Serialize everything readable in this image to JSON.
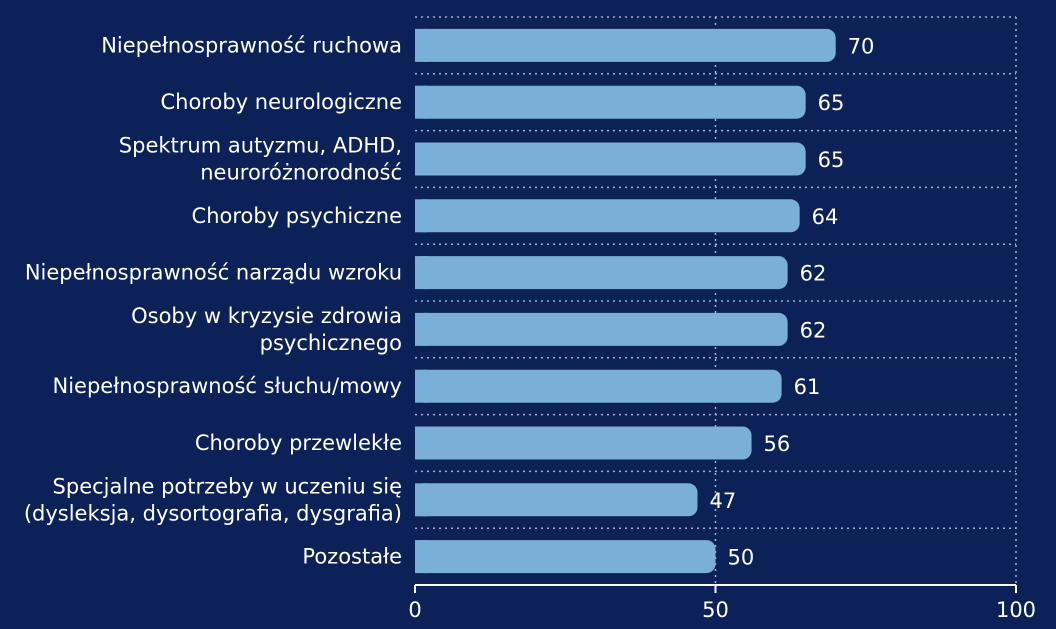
{
  "chart_data": {
    "type": "bar",
    "orientation": "horizontal",
    "categories": [
      [
        "Niepełnosprawność ruchowa"
      ],
      [
        "Choroby neurologiczne"
      ],
      [
        "Spektrum autyzmu, ADHD,",
        "neuroróżnorodność"
      ],
      [
        "Choroby psychiczne"
      ],
      [
        "Niepełnosprawność narządu wzroku"
      ],
      [
        "Osoby w kryzysie zdrowia",
        "psychicznego"
      ],
      [
        "Niepełnosprawność słuchu/mowy"
      ],
      [
        "Choroby przewlekłe"
      ],
      [
        "Specjalne potrzeby w uczeniu się",
        "(dysleksja, dysortografia, dysgrafia)"
      ],
      [
        "Pozostałe"
      ]
    ],
    "values": [
      70,
      65,
      65,
      64,
      62,
      62,
      61,
      56,
      47,
      50
    ],
    "xlim": [
      0,
      100
    ],
    "xticks": [
      0,
      50,
      100
    ],
    "title": "",
    "xlabel": "",
    "ylabel": "",
    "grid": "vertical dotted",
    "legend": "none",
    "data_labels": "outside-end"
  },
  "colors": {
    "background": "#0c2157",
    "bar": "#7aafd9",
    "text": "#ffffff",
    "grid": "#9fb3d9",
    "axis": "#ffffff"
  }
}
